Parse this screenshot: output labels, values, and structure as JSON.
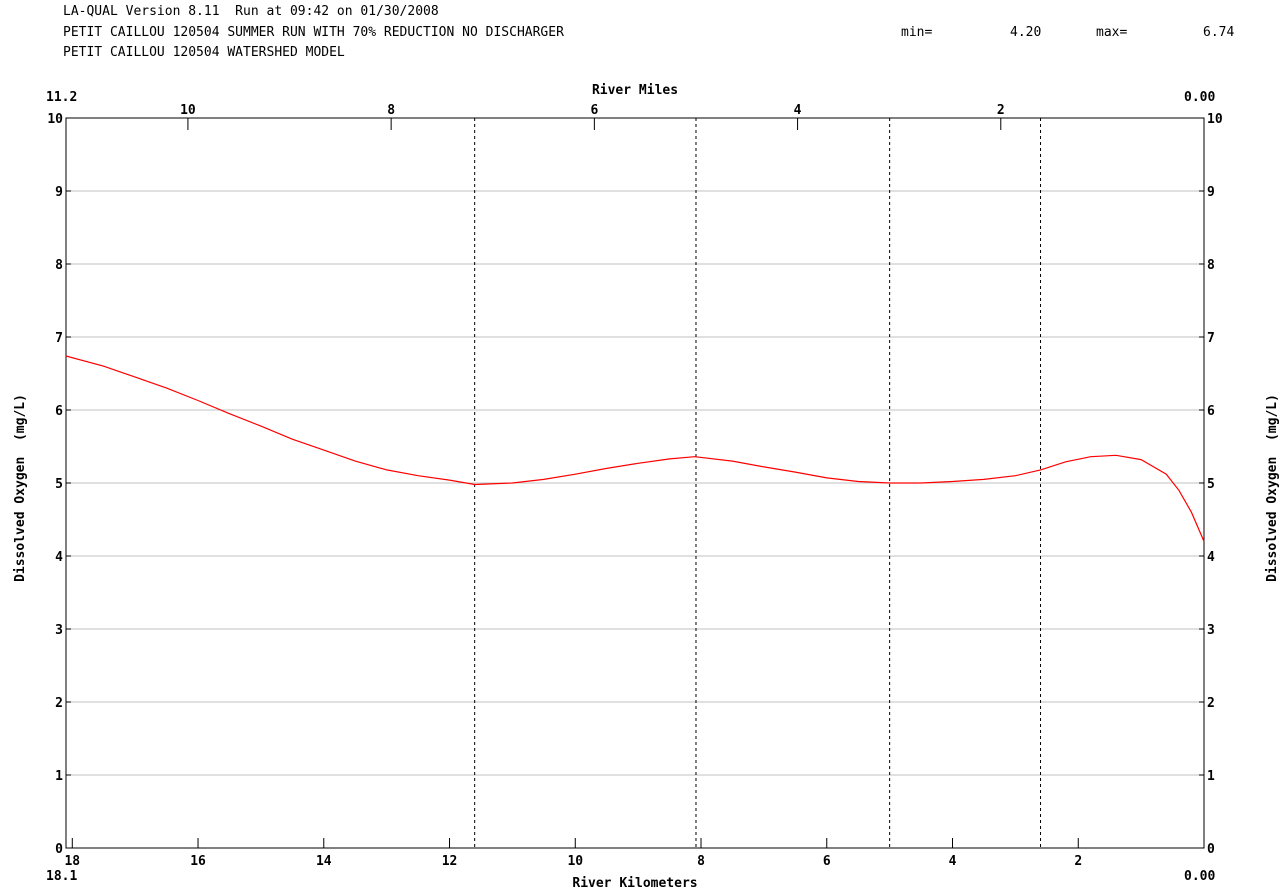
{
  "header": {
    "line1": "LA-QUAL Version 8.11  Run at 09:42 on 01/30/2008",
    "line2": "PETIT CAILLOU 120504 SUMMER RUN WITH 70% REDUCTION NO DISCHARGER",
    "line3": "PETIT CAILLOU 120504 WATERSHED MODEL",
    "min_label": "min=",
    "min_value": "4.20",
    "max_label": "max=",
    "max_value": "6.74"
  },
  "chart_data": {
    "type": "line",
    "title": "",
    "xlabel": "River Kilometers",
    "x2label": "River Miles",
    "ylabel": "Dissolved Oxygen  (mg/L)",
    "y2label": "Dissolved Oxygen  (mg/L)",
    "xlim": [
      18.1,
      0.0
    ],
    "x_ticks": [
      18,
      16,
      14,
      12,
      10,
      8,
      6,
      4,
      2
    ],
    "x_tick_labels": [
      "18",
      "16",
      "14",
      "12",
      "10",
      "8",
      "6",
      "4",
      "2"
    ],
    "x_start_label": "18.1",
    "x_end_label": "0.00",
    "x2lim": [
      11.2,
      0.0
    ],
    "x2_ticks": [
      10,
      8,
      6,
      4,
      2
    ],
    "x2_tick_labels": [
      "10",
      "8",
      "6",
      "4",
      "2"
    ],
    "x2_start_label": "11.2",
    "x2_end_label": "0.00",
    "ylim": [
      0,
      10
    ],
    "y_ticks": [
      0,
      1,
      2,
      3,
      4,
      5,
      6,
      7,
      8,
      9,
      10
    ],
    "y_tick_labels": [
      "0",
      "1",
      "2",
      "3",
      "4",
      "5",
      "6",
      "7",
      "8",
      "9",
      "10"
    ],
    "grid": "horizontal",
    "reach_boundaries_km": [
      11.6,
      8.08,
      5.0,
      2.6
    ],
    "series": [
      {
        "color": "#ff0000",
        "x": [
          18.1,
          17.5,
          17.0,
          16.5,
          16.0,
          15.5,
          15.0,
          14.5,
          14.0,
          13.5,
          13.0,
          12.5,
          12.0,
          11.6,
          11.0,
          10.5,
          10.0,
          9.5,
          9.0,
          8.5,
          8.1,
          7.5,
          7.0,
          6.5,
          6.0,
          5.5,
          5.0,
          4.5,
          4.0,
          3.5,
          3.0,
          2.6,
          2.2,
          1.8,
          1.4,
          1.0,
          0.6,
          0.4,
          0.2,
          0.0
        ],
        "y": [
          6.74,
          6.6,
          6.45,
          6.3,
          6.13,
          5.95,
          5.78,
          5.6,
          5.45,
          5.3,
          5.18,
          5.1,
          5.04,
          4.98,
          5.0,
          5.05,
          5.12,
          5.2,
          5.27,
          5.33,
          5.36,
          5.3,
          5.22,
          5.15,
          5.07,
          5.02,
          5.0,
          5.0,
          5.02,
          5.05,
          5.1,
          5.18,
          5.29,
          5.36,
          5.38,
          5.32,
          5.12,
          4.9,
          4.6,
          4.2
        ]
      }
    ]
  }
}
